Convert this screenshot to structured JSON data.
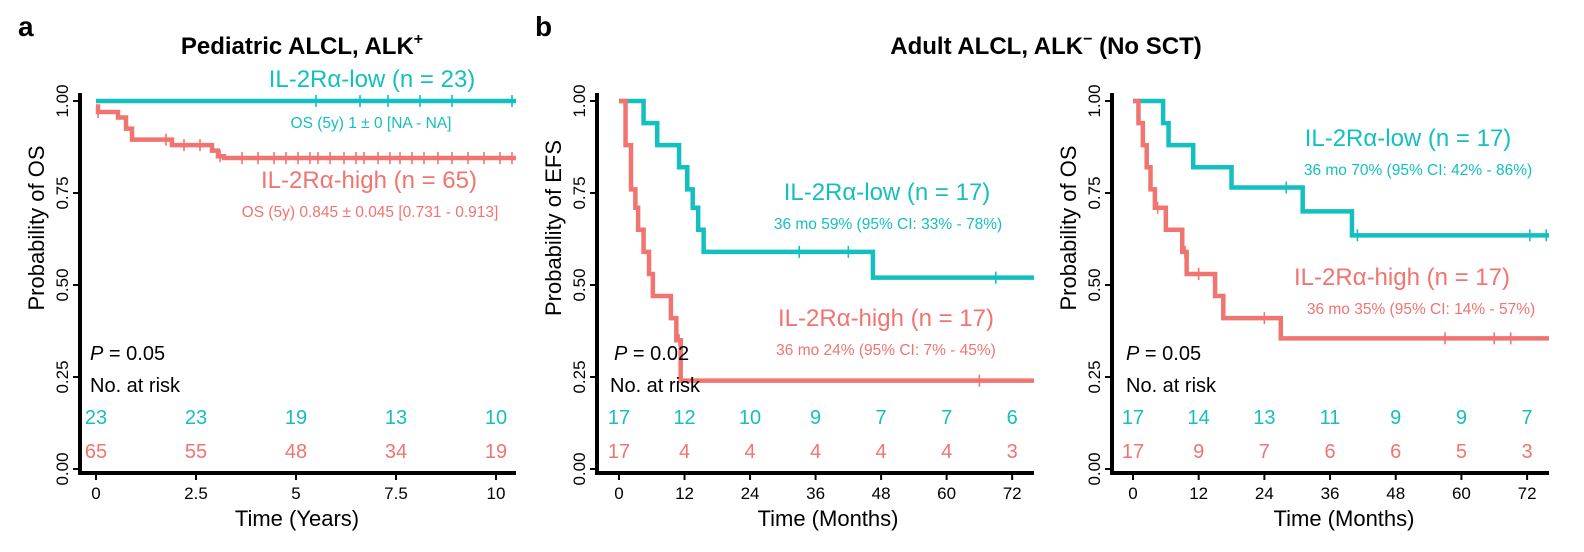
{
  "colors": {
    "low": "#14bfbf",
    "high": "#f07470",
    "axis": "#000000"
  },
  "chart_data": [
    {
      "type": "line",
      "panel": "a",
      "title": "Pediatric ALCL, ALK",
      "title_sup": "+",
      "xlabel": "Time (Years)",
      "ylabel": "Probability of OS",
      "xlim": [
        0,
        10.5
      ],
      "ylim": [
        0,
        1
      ],
      "x_ticks": [
        0,
        2.5,
        5,
        7.5,
        10
      ],
      "x_tick_labels": [
        "0",
        "2.5",
        "5",
        "7.5",
        "10"
      ],
      "y_ticks": [
        0,
        0.25,
        0.5,
        0.75,
        1
      ],
      "y_tick_labels": [
        "0.00",
        "0.25",
        "0.50",
        "0.75",
        "1.00"
      ],
      "p_label": "P",
      "p_value": " = 0.05",
      "risk_label": "No. at risk",
      "series": [
        {
          "name": "IL-2Rα-low (n = 23)",
          "stat": "OS (5y) 1 ± 0 [NA - NA]",
          "color_key": "low",
          "steps": [
            [
              0,
              1.0
            ],
            [
              10.5,
              1.0
            ]
          ],
          "censor": [
            5.5,
            6.6,
            7.3,
            8.1,
            8.9,
            10.4
          ],
          "risk": [
            "23",
            "23",
            "19",
            "13",
            "10"
          ]
        },
        {
          "name": "IL-2Rα-high (n = 65)",
          "stat": "OS (5y) 0.845 ± 0.045 [0.731 - 0.913]",
          "color_key": "high",
          "steps": [
            [
              0,
              0.985
            ],
            [
              0.05,
              0.97
            ],
            [
              0.55,
              0.955
            ],
            [
              0.75,
              0.925
            ],
            [
              0.9,
              0.895
            ],
            [
              1.9,
              0.88
            ],
            [
              2.9,
              0.865
            ],
            [
              3.05,
              0.85
            ],
            [
              3.2,
              0.845
            ],
            [
              10.5,
              0.845
            ]
          ],
          "censor": [
            0.05,
            1.75,
            2.2,
            2.6,
            3.1,
            3.65,
            4.05,
            4.45,
            4.75,
            5.05,
            5.35,
            5.55,
            5.85,
            6.2,
            6.5,
            6.7,
            7.05,
            7.35,
            7.6,
            7.9,
            8.2,
            8.55,
            8.9,
            9.3,
            9.7,
            10.1,
            10.4
          ],
          "risk": [
            "65",
            "55",
            "48",
            "34",
            "19"
          ]
        }
      ]
    },
    {
      "type": "line",
      "panel": "b",
      "title": "Adult ALCL, ALK",
      "title_sup": "−",
      "title_suffix": " (No SCT)",
      "xlabel": "Time (Months)",
      "ylabel": "Probability of EFS",
      "xlim": [
        0,
        76
      ],
      "ylim": [
        0,
        1
      ],
      "x_ticks": [
        0,
        12,
        24,
        36,
        48,
        60,
        72
      ],
      "x_tick_labels": [
        "0",
        "12",
        "24",
        "36",
        "48",
        "60",
        "72"
      ],
      "y_ticks": [
        0,
        0.25,
        0.5,
        0.75,
        1
      ],
      "y_tick_labels": [
        "0.00",
        "0.25",
        "0.50",
        "0.75",
        "1.00"
      ],
      "p_label": "P",
      "p_value": " = 0.02",
      "risk_label": "No. at risk",
      "series": [
        {
          "name": "IL-2Rα-low (n = 17)",
          "stat": "36 mo 59% (95% CI: 33% - 78%)",
          "color_key": "low",
          "steps": [
            [
              0,
              1.0
            ],
            [
              4.5,
              0.94
            ],
            [
              7,
              0.88
            ],
            [
              11,
              0.82
            ],
            [
              12.5,
              0.76
            ],
            [
              13.5,
              0.71
            ],
            [
              14.5,
              0.65
            ],
            [
              15.5,
              0.59
            ],
            [
              46.5,
              0.52
            ],
            [
              76,
              0.52
            ]
          ],
          "censor": [
            33,
            42,
            69
          ],
          "risk": [
            "17",
            "12",
            "10",
            "9",
            "7",
            "7",
            "6"
          ]
        },
        {
          "name": "IL-2Rα-high (n = 17)",
          "stat": "36 mo 24% (95% CI: 7% - 45%)",
          "color_key": "high",
          "steps": [
            [
              0,
              1.0
            ],
            [
              1.2,
              0.88
            ],
            [
              2.2,
              0.76
            ],
            [
              3,
              0.71
            ],
            [
              3.5,
              0.65
            ],
            [
              4.5,
              0.59
            ],
            [
              5.5,
              0.53
            ],
            [
              6.2,
              0.47
            ],
            [
              9.5,
              0.41
            ],
            [
              10.5,
              0.35
            ],
            [
              11.3,
              0.24
            ],
            [
              76,
              0.24
            ]
          ],
          "censor": [
            11,
            66
          ],
          "risk": [
            "17",
            "4",
            "4",
            "4",
            "4",
            "4",
            "3"
          ]
        }
      ]
    },
    {
      "type": "line",
      "panel": "",
      "title": "",
      "xlabel": "Time (Months)",
      "ylabel": "Probability of OS",
      "xlim": [
        0,
        76
      ],
      "ylim": [
        0,
        1
      ],
      "x_ticks": [
        0,
        12,
        24,
        36,
        48,
        60,
        72
      ],
      "x_tick_labels": [
        "0",
        "12",
        "24",
        "36",
        "48",
        "60",
        "72"
      ],
      "y_ticks": [
        0,
        0.25,
        0.5,
        0.75,
        1
      ],
      "y_tick_labels": [
        "0.00",
        "0.25",
        "0.50",
        "0.75",
        "1.00"
      ],
      "p_label": "P",
      "p_value": " = 0.05",
      "risk_label": "No. at risk",
      "series": [
        {
          "name": "IL-2Rα-low (n = 17)",
          "stat": "36 mo 70% (95% CI: 42% - 86%)",
          "color_key": "low",
          "steps": [
            [
              0,
              1.0
            ],
            [
              5.5,
              0.94
            ],
            [
              6.5,
              0.88
            ],
            [
              11,
              0.82
            ],
            [
              18,
              0.765
            ],
            [
              31,
              0.7
            ],
            [
              40,
              0.635
            ],
            [
              76,
              0.635
            ]
          ],
          "censor": [
            28,
            41,
            72.5,
            75.5
          ],
          "risk": [
            "17",
            "14",
            "13",
            "11",
            "9",
            "9",
            "7"
          ]
        },
        {
          "name": "IL-2Rα-high (n = 17)",
          "stat": "36 mo 35% (95% CI: 14% - 57%)",
          "color_key": "high",
          "steps": [
            [
              0,
              1.0
            ],
            [
              1,
              0.94
            ],
            [
              1.8,
              0.88
            ],
            [
              2.5,
              0.82
            ],
            [
              3.2,
              0.76
            ],
            [
              4,
              0.71
            ],
            [
              6,
              0.65
            ],
            [
              9,
              0.59
            ],
            [
              9.8,
              0.53
            ],
            [
              15,
              0.47
            ],
            [
              16.5,
              0.41
            ],
            [
              27,
              0.355
            ],
            [
              76,
              0.355
            ]
          ],
          "censor": [
            4.5,
            9.5,
            12,
            24,
            57,
            66,
            69
          ],
          "risk": [
            "17",
            "9",
            "7",
            "6",
            "6",
            "5",
            "3"
          ]
        }
      ]
    }
  ]
}
